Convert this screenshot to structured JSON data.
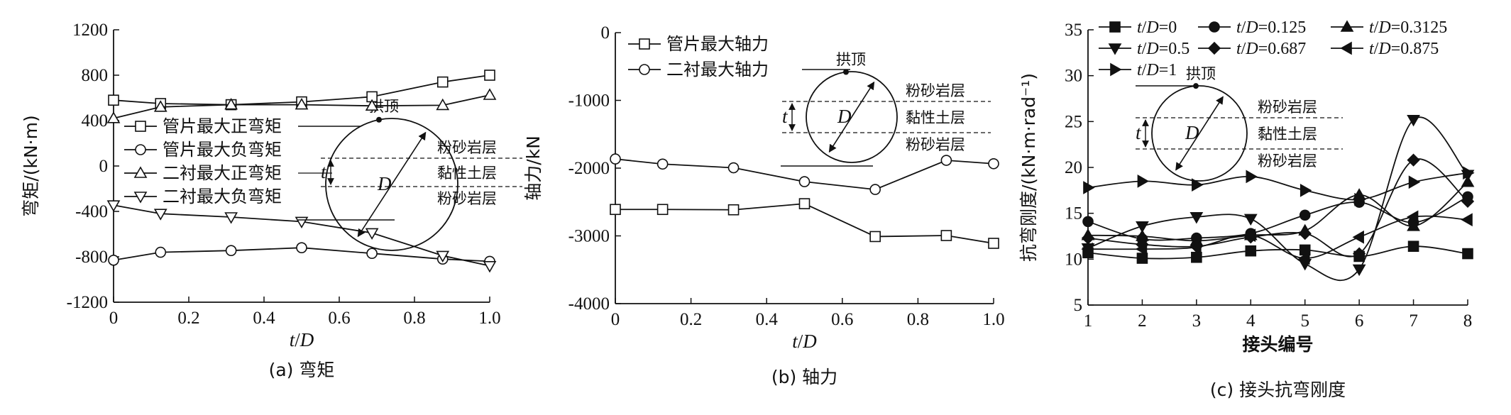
{
  "chart_data": [
    {
      "type": "line",
      "caption": "(a) 弯矩",
      "xlabel": "t/D",
      "ylabel": "弯矩/(kN·m)",
      "xlim": [
        0,
        1.0
      ],
      "ylim": [
        -1200,
        1200
      ],
      "xticks": [
        "0",
        "0.2",
        "0.4",
        "0.6",
        "0.8",
        "1.0"
      ],
      "yticks": [
        "1200",
        "800",
        "400",
        "0",
        "-400",
        "-800",
        "-1200"
      ],
      "x": [
        0,
        0.125,
        0.3125,
        0.5,
        0.687,
        0.875,
        1.0
      ],
      "series": [
        {
          "name": "管片最大正弯矩",
          "marker": "square",
          "values": [
            580,
            550,
            540,
            565,
            610,
            740,
            800
          ]
        },
        {
          "name": "管片最大负弯矩",
          "marker": "circle",
          "values": [
            -830,
            -760,
            -745,
            -720,
            -770,
            -820,
            -840
          ]
        },
        {
          "name": "二衬最大正弯矩",
          "marker": "triangle-up",
          "values": [
            420,
            520,
            540,
            540,
            530,
            535,
            625
          ]
        },
        {
          "name": "二衬最大负弯矩",
          "marker": "triangle-down",
          "values": [
            -345,
            -420,
            -450,
            -490,
            -590,
            -790,
            -880
          ]
        }
      ],
      "inset": {
        "crown": "拱顶",
        "diameter": "D",
        "thickness": "t",
        "layers": [
          "粉砂岩层",
          "黏性土层",
          "粉砂岩层"
        ]
      },
      "legend": "top-left"
    },
    {
      "type": "line",
      "caption": "(b) 轴力",
      "xlabel": "t/D",
      "ylabel": "轴力/kN",
      "xlim": [
        0,
        1.0
      ],
      "ylim": [
        -4000,
        0
      ],
      "xticks": [
        "0",
        "0.2",
        "0.4",
        "0.6",
        "0.8",
        "1.0"
      ],
      "yticks": [
        "0",
        "-1000",
        "-2000",
        "-3000",
        "-4000"
      ],
      "x": [
        0,
        0.125,
        0.3125,
        0.5,
        0.687,
        0.875,
        1.0
      ],
      "series": [
        {
          "name": "管片最大轴力",
          "marker": "square",
          "values": [
            -2610,
            -2610,
            -2615,
            -2525,
            -3010,
            -2995,
            -3110
          ]
        },
        {
          "name": "二衬最大轴力",
          "marker": "circle",
          "values": [
            -1865,
            -1940,
            -1995,
            -2200,
            -2315,
            -1885,
            -1935
          ]
        }
      ],
      "inset": {
        "crown": "拱顶",
        "diameter": "D",
        "thickness": "t",
        "layers": [
          "粉砂岩层",
          "黏性土层",
          "粉砂岩层"
        ]
      },
      "legend": "top-left"
    },
    {
      "type": "line",
      "caption": "(c) 接头抗弯刚度",
      "xlabel": "接头编号",
      "ylabel": "抗弯刚度/(kN·m·rad⁻¹)",
      "xlim": [
        1,
        8
      ],
      "ylim": [
        5,
        35
      ],
      "xticks": [
        "1",
        "2",
        "3",
        "4",
        "5",
        "6",
        "7",
        "8"
      ],
      "yticks": [
        "35",
        "30",
        "25",
        "20",
        "15",
        "10",
        "5"
      ],
      "x": [
        1,
        2,
        3,
        4,
        5,
        6,
        7,
        8
      ],
      "series": [
        {
          "name": "t/D=0",
          "marker": "filled-square",
          "values": [
            10.7,
            10.1,
            10.2,
            10.9,
            11.0,
            10.3,
            11.4,
            10.6
          ]
        },
        {
          "name": "t/D=0.125",
          "marker": "filled-circle",
          "values": [
            14.1,
            12.2,
            12.3,
            12.8,
            14.8,
            16.2,
            14.0,
            16.8
          ]
        },
        {
          "name": "t/D=0.3125",
          "marker": "filled-triangle-up",
          "values": [
            12.6,
            12.5,
            12.0,
            12.6,
            13.1,
            17.0,
            13.6,
            18.4
          ]
        },
        {
          "name": "t/D=0.5",
          "marker": "filled-triangle-down",
          "values": [
            11.2,
            13.6,
            14.6,
            14.4,
            9.5,
            8.9,
            25.2,
            19.2
          ]
        },
        {
          "name": "t/D=0.687",
          "marker": "filled-diamond",
          "values": [
            12.3,
            11.6,
            11.4,
            12.4,
            12.8,
            10.6,
            20.8,
            16.3
          ]
        },
        {
          "name": "t/D=0.875",
          "marker": "filled-triangle-left",
          "values": [
            11.1,
            11.1,
            11.3,
            12.6,
            10.1,
            12.4,
            14.6,
            14.3
          ]
        },
        {
          "name": "t/D=1",
          "marker": "filled-triangle-right",
          "values": [
            17.8,
            18.5,
            18.1,
            19.0,
            17.5,
            16.5,
            18.4,
            19.4
          ]
        }
      ],
      "inset": {
        "crown": "拱顶",
        "diameter": "D",
        "thickness": "t",
        "layers": [
          "粉砂岩层",
          "黏性土层",
          "粉砂岩层"
        ]
      },
      "legend": "top"
    }
  ]
}
